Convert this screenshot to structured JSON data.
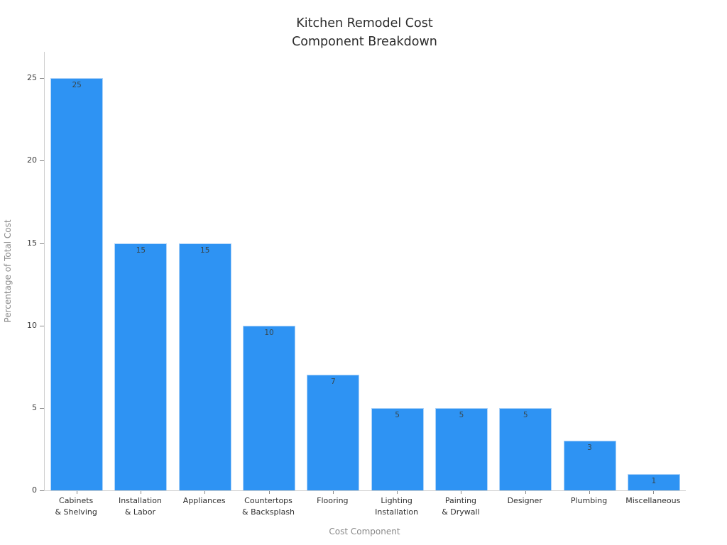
{
  "page": {
    "background": "#ffffff"
  },
  "chart_data": {
    "type": "bar",
    "title_lines": [
      "Kitchen Remodel Cost",
      "Component Breakdown"
    ],
    "title": "Kitchen Remodel Cost Component Breakdown",
    "xlabel": "Cost Component",
    "ylabel": "Percentage of Total Cost",
    "categories": [
      "Cabinets\n& Shelving",
      "Installation\n& Labor",
      "Appliances",
      "Countertops\n& Backsplash",
      "Flooring",
      "Lighting\nInstallation",
      "Painting\n& Drywall",
      "Designer",
      "Plumbing",
      "Miscellaneous"
    ],
    "values": [
      25,
      15,
      15,
      10,
      7,
      5,
      5,
      5,
      3,
      1
    ],
    "yticks": [
      0,
      5,
      10,
      15,
      20,
      25
    ],
    "ylim": [
      0,
      26.6
    ],
    "grid": false,
    "legend": null,
    "bar_value_labels_position": "inside-top",
    "colors": {
      "bar_fill": "#2e93f3",
      "bar_border": "#aed3f8",
      "axis_line": "#d0d0d0",
      "tick_mark": "#8a8a8a",
      "tick_label": "#3a3a3a",
      "axis_title": "#8a8a8a",
      "title": "#2b2b2b",
      "value_label": "#37474f"
    }
  }
}
